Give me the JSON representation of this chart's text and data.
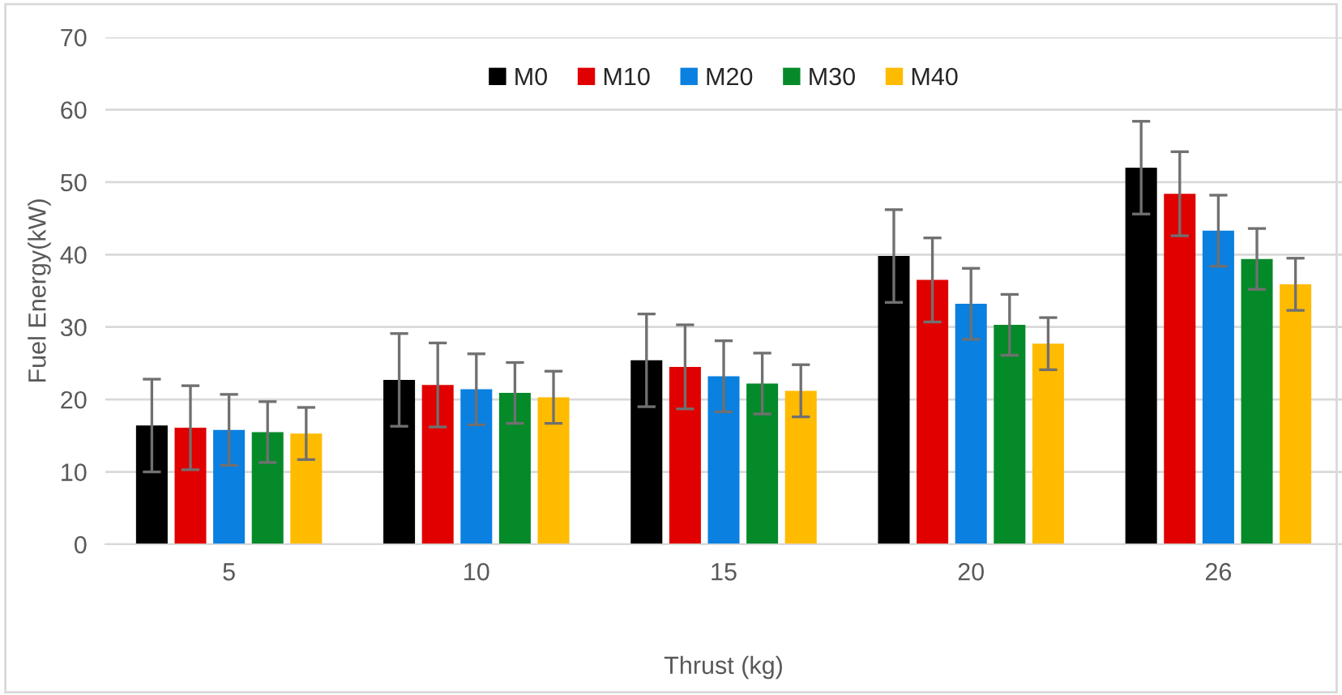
{
  "chart_data": {
    "type": "bar",
    "xlabel": "Thrust (kg)",
    "ylabel": "Fuel Energy(kW)",
    "categories": [
      "5",
      "10",
      "15",
      "20",
      "26"
    ],
    "series": [
      {
        "name": "M0",
        "color": "#000000",
        "values": [
          16.4,
          22.7,
          25.4,
          39.8,
          52.0
        ],
        "errors": [
          6.4,
          6.4,
          6.4,
          6.4,
          6.4
        ]
      },
      {
        "name": "M10",
        "color": "#e00000",
        "values": [
          16.1,
          22.0,
          24.5,
          36.5,
          48.4
        ],
        "errors": [
          5.8,
          5.8,
          5.8,
          5.8,
          5.8
        ]
      },
      {
        "name": "M20",
        "color": "#0a80e0",
        "values": [
          15.8,
          21.4,
          23.2,
          33.2,
          43.3
        ],
        "errors": [
          4.9,
          4.9,
          4.9,
          4.9,
          4.9
        ]
      },
      {
        "name": "M30",
        "color": "#058a2a",
        "values": [
          15.5,
          20.9,
          22.2,
          30.3,
          39.4
        ],
        "errors": [
          4.2,
          4.2,
          4.2,
          4.2,
          4.2
        ]
      },
      {
        "name": "M40",
        "color": "#ffbb00",
        "values": [
          15.3,
          20.3,
          21.2,
          27.7,
          35.9
        ],
        "errors": [
          3.6,
          3.6,
          3.6,
          3.6,
          3.6
        ]
      }
    ],
    "ylim": [
      0,
      70
    ],
    "yticks": [
      0,
      10,
      20,
      30,
      40,
      50,
      60,
      70
    ],
    "grid": "y",
    "legend": "top"
  }
}
